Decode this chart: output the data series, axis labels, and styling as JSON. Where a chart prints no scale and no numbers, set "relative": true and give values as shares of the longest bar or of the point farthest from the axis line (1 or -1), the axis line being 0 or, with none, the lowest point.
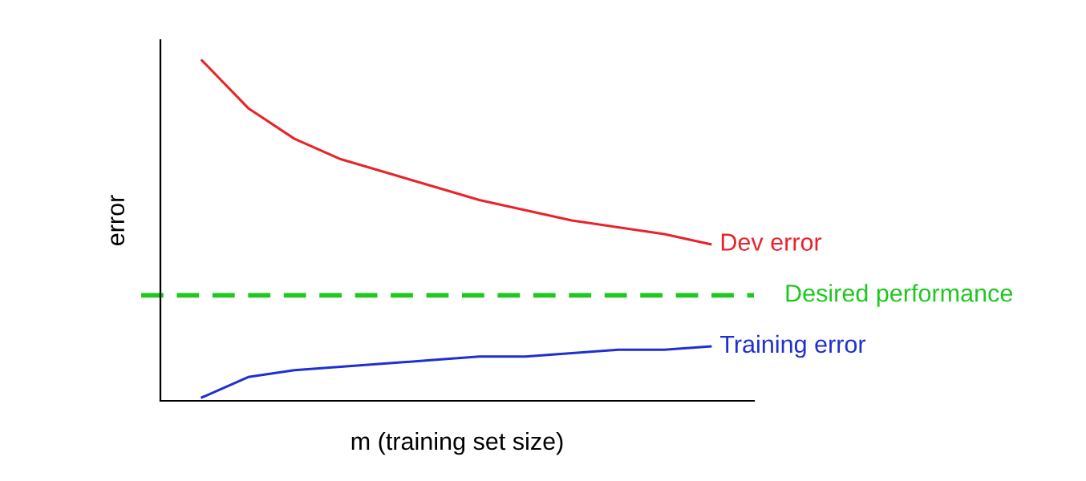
{
  "chart_data": {
    "type": "line",
    "relative": true,
    "xlabel": "m (training set size)",
    "ylabel": "error",
    "categories": [
      null,
      null,
      null,
      null,
      null,
      null,
      null,
      null,
      null,
      null,
      null,
      null
    ],
    "series": [
      {
        "name": "Dev error",
        "color": "#e8232a",
        "values": [
          1.0,
          0.86,
          0.77,
          0.71,
          0.67,
          0.63,
          0.59,
          0.56,
          0.53,
          0.51,
          0.49,
          0.46
        ]
      },
      {
        "name": "Training error",
        "color": "#1f2fd0",
        "values": [
          0.01,
          0.07,
          0.09,
          0.1,
          0.11,
          0.12,
          0.13,
          0.13,
          0.14,
          0.15,
          0.15,
          0.16
        ]
      }
    ],
    "ref_lines": [
      {
        "axis": "y",
        "value": 0.31,
        "label": "Desired performance",
        "color": "#1fc71f",
        "line_style": "dashed"
      }
    ],
    "legend": false,
    "marker": "none",
    "line_style": "solid"
  }
}
